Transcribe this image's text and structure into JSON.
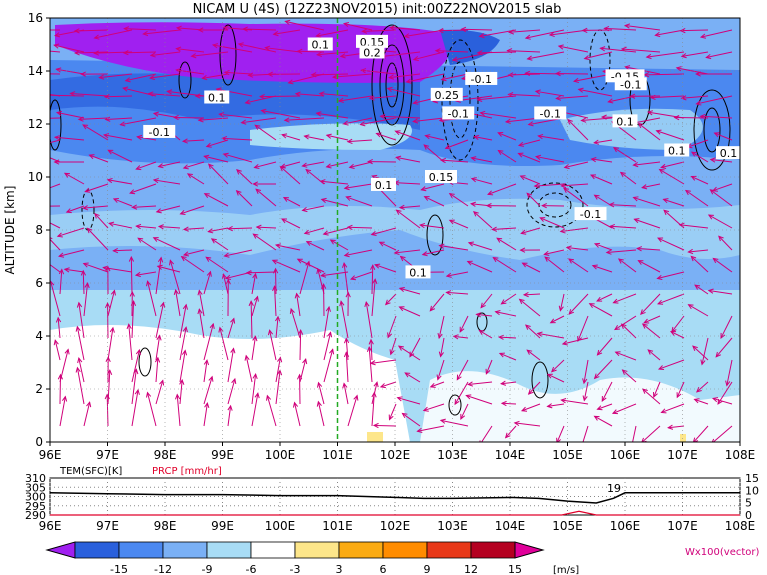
{
  "chart_data": {
    "type": "heatmap",
    "title": "NICAM U (4S) (12Z23NOV2015) init:00Z22NOV2015 slab",
    "main_panel": {
      "xlabel": "",
      "ylabel": "ALTITUDE [km]",
      "x_ticks": [
        "96E",
        "97E",
        "98E",
        "99E",
        "100E",
        "101E",
        "102E",
        "103E",
        "104E",
        "105E",
        "106E",
        "107E",
        "108E"
      ],
      "y_ticks": [
        "0",
        "2",
        "4",
        "6",
        "8",
        "10",
        "12",
        "14",
        "16"
      ],
      "xlim": [
        96,
        108
      ],
      "ylim": [
        0,
        16
      ],
      "grid": true,
      "marker_line_lon": 101,
      "shading_variable": "U [m/s]",
      "contour_labels": [
        {
          "text": "0.1",
          "lon": 98.9,
          "alt": 13.0
        },
        {
          "text": "-0.1",
          "lon": 97.9,
          "alt": 11.7
        },
        {
          "text": "0.1",
          "lon": 100.7,
          "alt": 15.0
        },
        {
          "text": "0.15",
          "lon": 101.6,
          "alt": 15.1
        },
        {
          "text": "0.2",
          "lon": 101.6,
          "alt": 14.7
        },
        {
          "text": "0.1",
          "lon": 101.8,
          "alt": 9.7
        },
        {
          "text": "0.25",
          "lon": 102.9,
          "alt": 13.1
        },
        {
          "text": "0.15",
          "lon": 102.8,
          "alt": 10.0
        },
        {
          "text": "-0.1",
          "lon": 103.1,
          "alt": 12.4
        },
        {
          "text": "-0.1",
          "lon": 103.5,
          "alt": 13.7
        },
        {
          "text": "0.1",
          "lon": 102.4,
          "alt": 6.4
        },
        {
          "text": "-0.1",
          "lon": 104.7,
          "alt": 12.4
        },
        {
          "text": "-0.1",
          "lon": 105.4,
          "alt": 8.6
        },
        {
          "text": "-0.15",
          "lon": 106.0,
          "alt": 13.8
        },
        {
          "text": "-0.1",
          "lon": 106.1,
          "alt": 13.5
        },
        {
          "text": "0.1",
          "lon": 106.0,
          "alt": 12.1
        },
        {
          "text": "0.1",
          "lon": 106.9,
          "alt": 11.0
        },
        {
          "text": "0.1",
          "lon": 107.8,
          "alt": 10.9
        }
      ]
    },
    "sub_panel": {
      "series": [
        {
          "name": "TEM(SFC)[K]",
          "color": "#000000",
          "axis_ticks": [
            "290",
            "295",
            "300",
            "305",
            "310"
          ],
          "x": [
            96,
            97,
            98,
            99,
            100,
            101,
            102,
            102.5,
            103,
            104,
            104.5,
            105,
            105.5,
            105.8,
            106,
            107,
            108
          ],
          "y": [
            302,
            301.5,
            301,
            301,
            300.5,
            300.5,
            299.5,
            299,
            299,
            299.5,
            299,
            297.5,
            296.5,
            299,
            302,
            302,
            302
          ]
        },
        {
          "name": "PRCP [mm/hr]",
          "color": "#e0002a",
          "axis_ticks": [
            "0",
            "5",
            "10",
            "15"
          ],
          "x": [
            96,
            104.9,
            105.2,
            105.5,
            108
          ],
          "y": [
            0,
            0,
            1.5,
            0,
            0
          ]
        }
      ],
      "annotation": "19",
      "x_ticks": [
        "96E",
        "97E",
        "98E",
        "99E",
        "100E",
        "101E",
        "102E",
        "103E",
        "104E",
        "105E",
        "106E",
        "107E",
        "108E"
      ]
    },
    "colorbar": {
      "unit": "[m/s]",
      "tick_labels": [
        "-15",
        "-12",
        "-9",
        "-6",
        "-3",
        "3",
        "6",
        "9",
        "12",
        "15"
      ],
      "colors": [
        "#a020f0",
        "#2a60dc",
        "#4b88f0",
        "#7ab0f5",
        "#a8dcf5",
        "#ffffff",
        "#fde68a",
        "#fbab13",
        "#ff8c00",
        "#e83818",
        "#b40020",
        "#e0009a"
      ]
    },
    "vector_legend": "Wx100(vector)"
  }
}
